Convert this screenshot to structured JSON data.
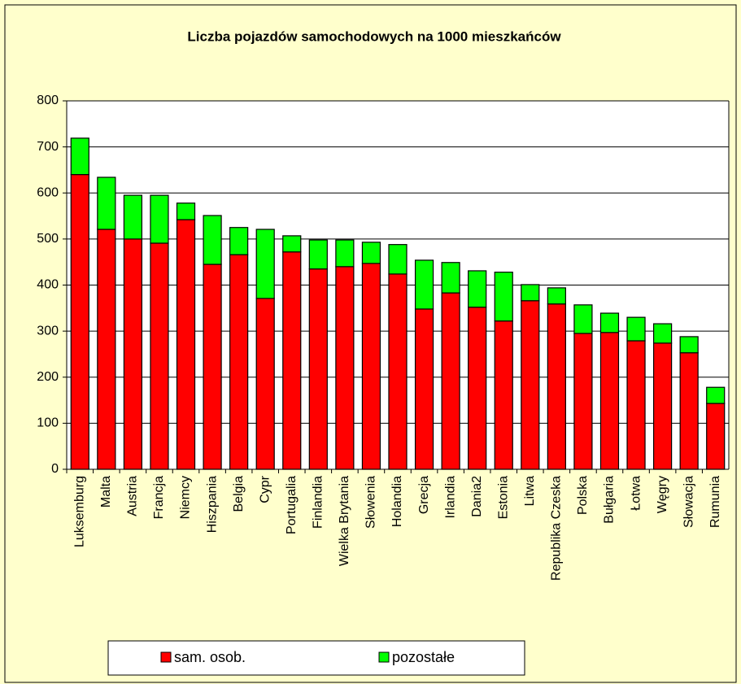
{
  "chart_data": {
    "type": "stacked_bar",
    "title": "Liczba pojazdów samochodowych na 1000 mieszkańców",
    "categories": [
      "Luksemburg",
      "Malta",
      "Austria",
      "Francja",
      "Niemcy",
      "Hiszpania",
      "Belgia",
      "Cypr",
      "Portugalia",
      "Finlandia",
      "Wielka Brytania",
      "Słowenia",
      "Holandia",
      "Grecja",
      "Irlandia",
      "Dania2",
      "Estonia",
      "Litwa",
      "Republika Czeska",
      "Polska",
      "Bułgaria",
      "Łotwa",
      "Węgry",
      "Słowacja",
      "Rumunia"
    ],
    "series": [
      {
        "name": "sam. osob.",
        "color": "#ff0000",
        "values": [
          640,
          521,
          500,
          491,
          542,
          445,
          466,
          371,
          472,
          435,
          440,
          447,
          424,
          348,
          383,
          352,
          322,
          366,
          359,
          295,
          297,
          279,
          274,
          253,
          143
        ]
      },
      {
        "name": "pozostałe",
        "color": "#00ff00",
        "values": [
          79,
          113,
          95,
          104,
          36,
          106,
          59,
          150,
          35,
          63,
          58,
          46,
          64,
          106,
          66,
          79,
          106,
          35,
          35,
          62,
          42,
          51,
          42,
          35,
          35
        ]
      }
    ],
    "ylim": [
      0,
      800
    ],
    "yticks": [
      0,
      100,
      200,
      300,
      400,
      500,
      600,
      700,
      800
    ],
    "grid": true
  }
}
